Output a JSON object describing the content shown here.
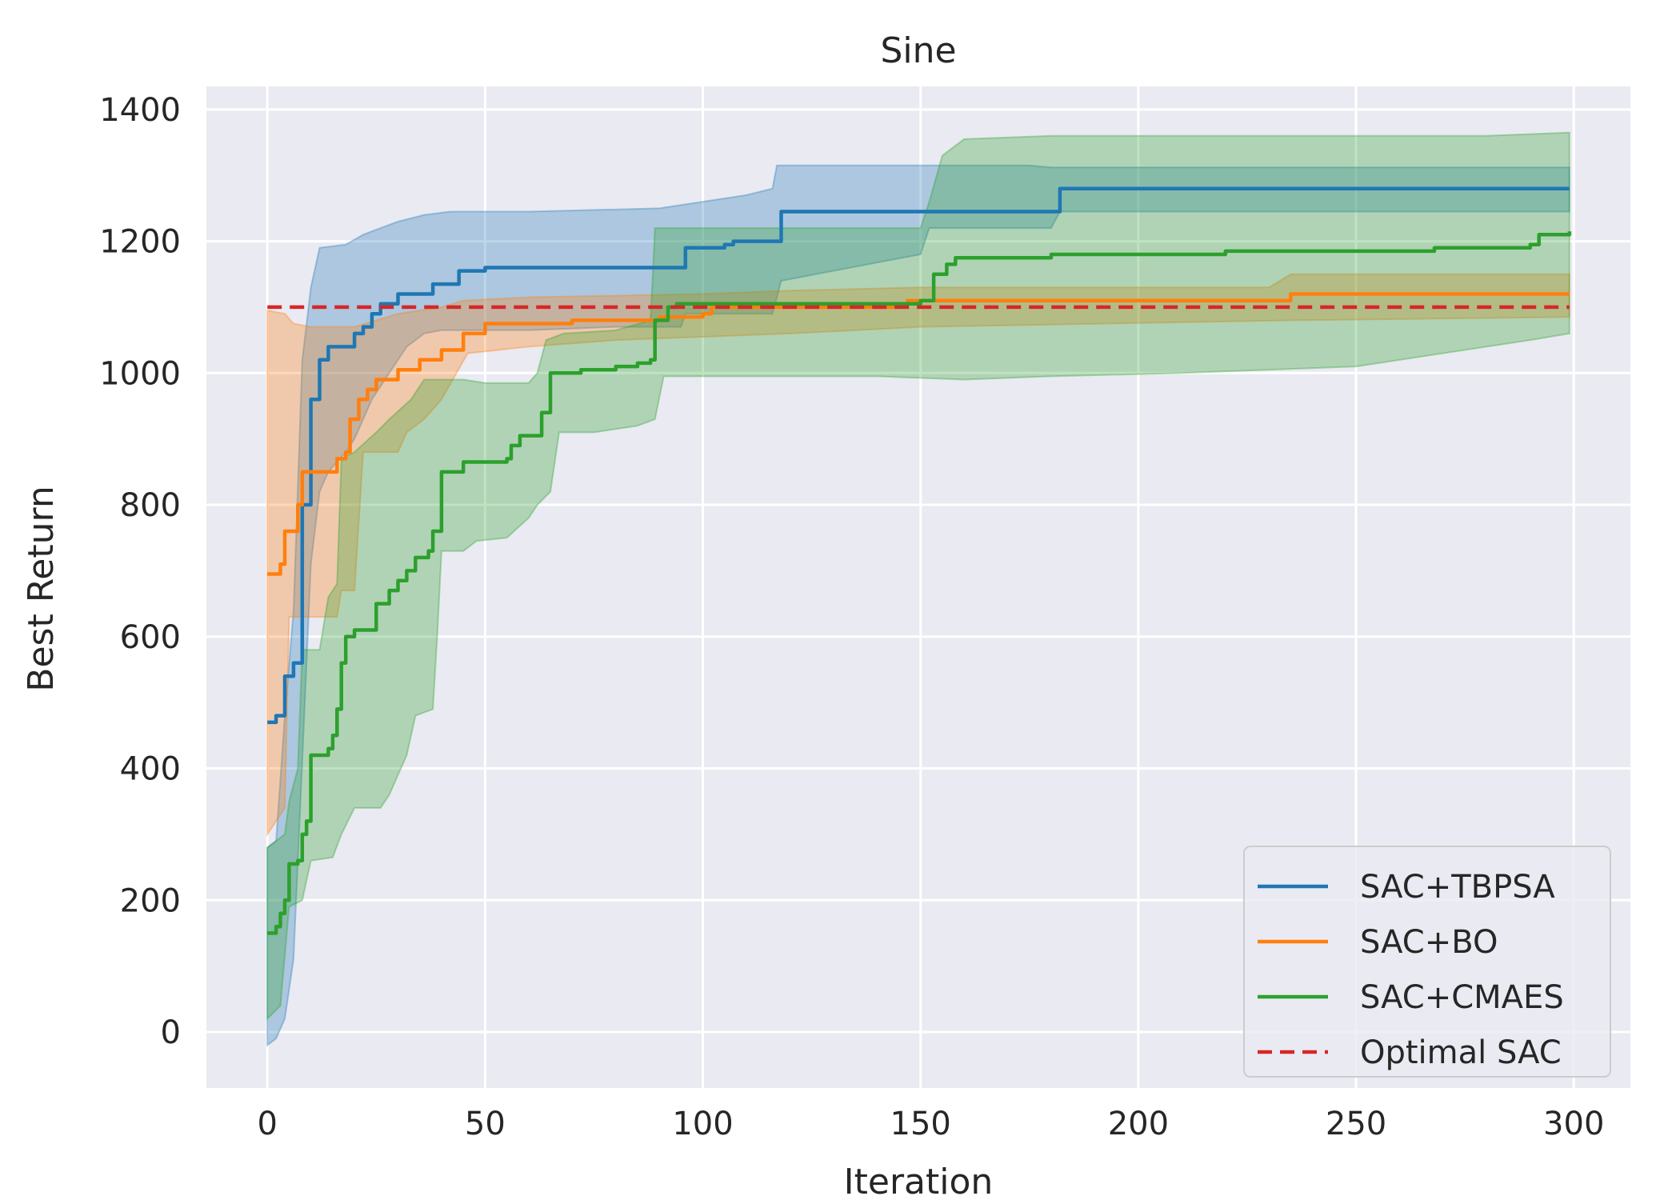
{
  "chart_data": {
    "type": "line",
    "title": "Sine",
    "xlabel": "Iteration",
    "ylabel": "Best Return",
    "xlim": [
      -14,
      313
    ],
    "ylim": [
      -85,
      1435
    ],
    "xticks": [
      0,
      50,
      100,
      150,
      200,
      250,
      300
    ],
    "yticks": [
      0,
      200,
      400,
      600,
      800,
      1000,
      1200,
      1400
    ],
    "grid": true,
    "background": "#eaeaf2",
    "legend_position": "lower-right",
    "series": [
      {
        "name": "SAC+TBPSA",
        "color": "#1f77b4",
        "points": [
          [
            0,
            470
          ],
          [
            2,
            480
          ],
          [
            4,
            540
          ],
          [
            6,
            560
          ],
          [
            8,
            800
          ],
          [
            10,
            960
          ],
          [
            12,
            1020
          ],
          [
            14,
            1040
          ],
          [
            20,
            1060
          ],
          [
            22,
            1070
          ],
          [
            24,
            1090
          ],
          [
            26,
            1105
          ],
          [
            30,
            1120
          ],
          [
            38,
            1135
          ],
          [
            44,
            1155
          ],
          [
            50,
            1160
          ],
          [
            95,
            1160
          ],
          [
            96,
            1190
          ],
          [
            105,
            1195
          ],
          [
            107,
            1200
          ],
          [
            116,
            1200
          ],
          [
            118,
            1245
          ],
          [
            181,
            1245
          ],
          [
            182,
            1280
          ],
          [
            299,
            1280
          ]
        ],
        "band_upper": [
          [
            0,
            280
          ],
          [
            2,
            290
          ],
          [
            4,
            480
          ],
          [
            6,
            640
          ],
          [
            8,
            1020
          ],
          [
            10,
            1130
          ],
          [
            12,
            1190
          ],
          [
            18,
            1195
          ],
          [
            22,
            1210
          ],
          [
            26,
            1220
          ],
          [
            30,
            1230
          ],
          [
            36,
            1240
          ],
          [
            42,
            1245
          ],
          [
            60,
            1245
          ],
          [
            90,
            1250
          ],
          [
            100,
            1260
          ],
          [
            110,
            1270
          ],
          [
            116,
            1280
          ],
          [
            117,
            1315
          ],
          [
            175,
            1315
          ],
          [
            180,
            1312
          ],
          [
            299,
            1312
          ]
        ],
        "band_lower": [
          [
            0,
            -20
          ],
          [
            2,
            -10
          ],
          [
            4,
            20
          ],
          [
            6,
            110
          ],
          [
            8,
            410
          ],
          [
            10,
            710
          ],
          [
            12,
            820
          ],
          [
            14,
            850
          ],
          [
            18,
            880
          ],
          [
            20,
            900
          ],
          [
            24,
            960
          ],
          [
            28,
            1000
          ],
          [
            32,
            1040
          ],
          [
            36,
            1060
          ],
          [
            40,
            1065
          ],
          [
            60,
            1065
          ],
          [
            80,
            1070
          ],
          [
            95,
            1070
          ],
          [
            96,
            1090
          ],
          [
            116,
            1090
          ],
          [
            118,
            1140
          ],
          [
            150,
            1180
          ],
          [
            152,
            1220
          ],
          [
            180,
            1220
          ],
          [
            182,
            1245
          ],
          [
            299,
            1245
          ]
        ]
      },
      {
        "name": "SAC+BO",
        "color": "#ff7f0e",
        "points": [
          [
            0,
            695
          ],
          [
            3,
            710
          ],
          [
            4,
            760
          ],
          [
            7,
            800
          ],
          [
            8,
            850
          ],
          [
            14,
            850
          ],
          [
            16,
            870
          ],
          [
            18,
            880
          ],
          [
            19,
            930
          ],
          [
            21,
            960
          ],
          [
            23,
            975
          ],
          [
            25,
            990
          ],
          [
            30,
            1005
          ],
          [
            35,
            1020
          ],
          [
            40,
            1035
          ],
          [
            45,
            1060
          ],
          [
            50,
            1075
          ],
          [
            70,
            1080
          ],
          [
            90,
            1085
          ],
          [
            100,
            1090
          ],
          [
            102,
            1100
          ],
          [
            145,
            1105
          ],
          [
            147,
            1110
          ],
          [
            230,
            1110
          ],
          [
            235,
            1120
          ],
          [
            299,
            1120
          ]
        ],
        "band_upper": [
          [
            0,
            1095
          ],
          [
            4,
            1090
          ],
          [
            6,
            1075
          ],
          [
            10,
            1070
          ],
          [
            20,
            1070
          ],
          [
            25,
            1080
          ],
          [
            30,
            1090
          ],
          [
            40,
            1100
          ],
          [
            45,
            1110
          ],
          [
            60,
            1115
          ],
          [
            100,
            1120
          ],
          [
            120,
            1125
          ],
          [
            150,
            1130
          ],
          [
            230,
            1130
          ],
          [
            235,
            1150
          ],
          [
            299,
            1150
          ]
        ],
        "band_lower": [
          [
            0,
            300
          ],
          [
            4,
            340
          ],
          [
            5,
            630
          ],
          [
            16,
            630
          ],
          [
            17,
            670
          ],
          [
            20,
            670
          ],
          [
            22,
            880
          ],
          [
            30,
            880
          ],
          [
            32,
            910
          ],
          [
            36,
            930
          ],
          [
            40,
            960
          ],
          [
            46,
            1030
          ],
          [
            60,
            1040
          ],
          [
            80,
            1050
          ],
          [
            100,
            1055
          ],
          [
            120,
            1060
          ],
          [
            150,
            1070
          ],
          [
            235,
            1080
          ],
          [
            299,
            1085
          ]
        ]
      },
      {
        "name": "SAC+CMAES",
        "color": "#2ca02c",
        "points": [
          [
            0,
            150
          ],
          [
            2,
            160
          ],
          [
            3,
            180
          ],
          [
            4,
            200
          ],
          [
            5,
            255
          ],
          [
            7,
            260
          ],
          [
            8,
            300
          ],
          [
            9,
            320
          ],
          [
            10,
            420
          ],
          [
            12,
            420
          ],
          [
            14,
            430
          ],
          [
            15,
            450
          ],
          [
            16,
            490
          ],
          [
            17,
            560
          ],
          [
            18,
            600
          ],
          [
            20,
            610
          ],
          [
            24,
            610
          ],
          [
            25,
            650
          ],
          [
            28,
            670
          ],
          [
            30,
            685
          ],
          [
            32,
            700
          ],
          [
            34,
            720
          ],
          [
            37,
            730
          ],
          [
            38,
            760
          ],
          [
            40,
            850
          ],
          [
            43,
            850
          ],
          [
            45,
            865
          ],
          [
            55,
            870
          ],
          [
            56,
            890
          ],
          [
            58,
            905
          ],
          [
            62,
            905
          ],
          [
            63,
            940
          ],
          [
            65,
            1000
          ],
          [
            72,
            1005
          ],
          [
            80,
            1010
          ],
          [
            85,
            1015
          ],
          [
            88,
            1020
          ],
          [
            89,
            1080
          ],
          [
            92,
            1100
          ],
          [
            94,
            1105
          ],
          [
            150,
            1110
          ],
          [
            153,
            1150
          ],
          [
            156,
            1165
          ],
          [
            158,
            1175
          ],
          [
            180,
            1180
          ],
          [
            220,
            1185
          ],
          [
            268,
            1190
          ],
          [
            290,
            1195
          ],
          [
            292,
            1210
          ],
          [
            299,
            1215
          ]
        ],
        "band_upper": [
          [
            0,
            280
          ],
          [
            4,
            300
          ],
          [
            5,
            350
          ],
          [
            7,
            400
          ],
          [
            8,
            580
          ],
          [
            12,
            580
          ],
          [
            14,
            660
          ],
          [
            16,
            680
          ],
          [
            17,
            870
          ],
          [
            20,
            880
          ],
          [
            25,
            910
          ],
          [
            28,
            930
          ],
          [
            33,
            960
          ],
          [
            36,
            990
          ],
          [
            40,
            990
          ],
          [
            45,
            990
          ],
          [
            50,
            985
          ],
          [
            60,
            985
          ],
          [
            62,
            1000
          ],
          [
            64,
            1050
          ],
          [
            68,
            1060
          ],
          [
            80,
            1065
          ],
          [
            88,
            1080
          ],
          [
            89,
            1220
          ],
          [
            150,
            1220
          ],
          [
            152,
            1260
          ],
          [
            155,
            1330
          ],
          [
            160,
            1355
          ],
          [
            180,
            1360
          ],
          [
            280,
            1360
          ],
          [
            299,
            1365
          ]
        ],
        "band_lower": [
          [
            0,
            20
          ],
          [
            3,
            40
          ],
          [
            5,
            190
          ],
          [
            8,
            200
          ],
          [
            10,
            260
          ],
          [
            15,
            265
          ],
          [
            17,
            300
          ],
          [
            20,
            340
          ],
          [
            26,
            340
          ],
          [
            28,
            360
          ],
          [
            32,
            420
          ],
          [
            34,
            480
          ],
          [
            38,
            490
          ],
          [
            39,
            600
          ],
          [
            40,
            730
          ],
          [
            45,
            730
          ],
          [
            48,
            745
          ],
          [
            55,
            750
          ],
          [
            60,
            780
          ],
          [
            62,
            800
          ],
          [
            65,
            820
          ],
          [
            67,
            910
          ],
          [
            75,
            910
          ],
          [
            85,
            920
          ],
          [
            89,
            930
          ],
          [
            91,
            995
          ],
          [
            100,
            995
          ],
          [
            140,
            995
          ],
          [
            160,
            990
          ],
          [
            180,
            995
          ],
          [
            210,
            1000
          ],
          [
            250,
            1010
          ],
          [
            290,
            1050
          ],
          [
            299,
            1060
          ]
        ]
      },
      {
        "name": "Optimal SAC",
        "color": "#d62728",
        "dashed": true,
        "points": [
          [
            0,
            1100
          ],
          [
            299,
            1100
          ]
        ]
      }
    ]
  }
}
